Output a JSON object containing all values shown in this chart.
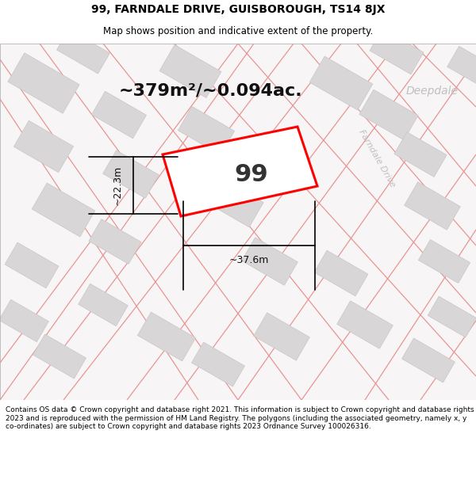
{
  "title": "99, FARNDALE DRIVE, GUISBOROUGH, TS14 8JX",
  "subtitle": "Map shows position and indicative extent of the property.",
  "area_text": "~379m²/~0.094ac.",
  "dim_width": "~37.6m",
  "dim_height": "~22.3m",
  "plot_label": "99",
  "street_label": "Farndale Drive",
  "deepdale_label": "Deepdale",
  "footer": "Contains OS data © Crown copyright and database right 2021. This information is subject to Crown copyright and database rights 2023 and is reproduced with the permission of HM Land Registry. The polygons (including the associated geometry, namely x, y co-ordinates) are subject to Crown copyright and database rights 2023 Ordnance Survey 100026316.",
  "map_bg": "#f7f5f5",
  "plot_fill": "#ffffff",
  "plot_edge": "#ff0000",
  "road_line_color": "#e89090",
  "building_color": "#d8d6d6",
  "building_edge": "#c8c6c6",
  "title_fontsize": 10,
  "subtitle_fontsize": 8.5,
  "area_fontsize": 16,
  "plot_label_fontsize": 22,
  "dim_fontsize": 9,
  "street_fontsize": 8,
  "deepdale_fontsize": 10,
  "footer_fontsize": 6.5
}
